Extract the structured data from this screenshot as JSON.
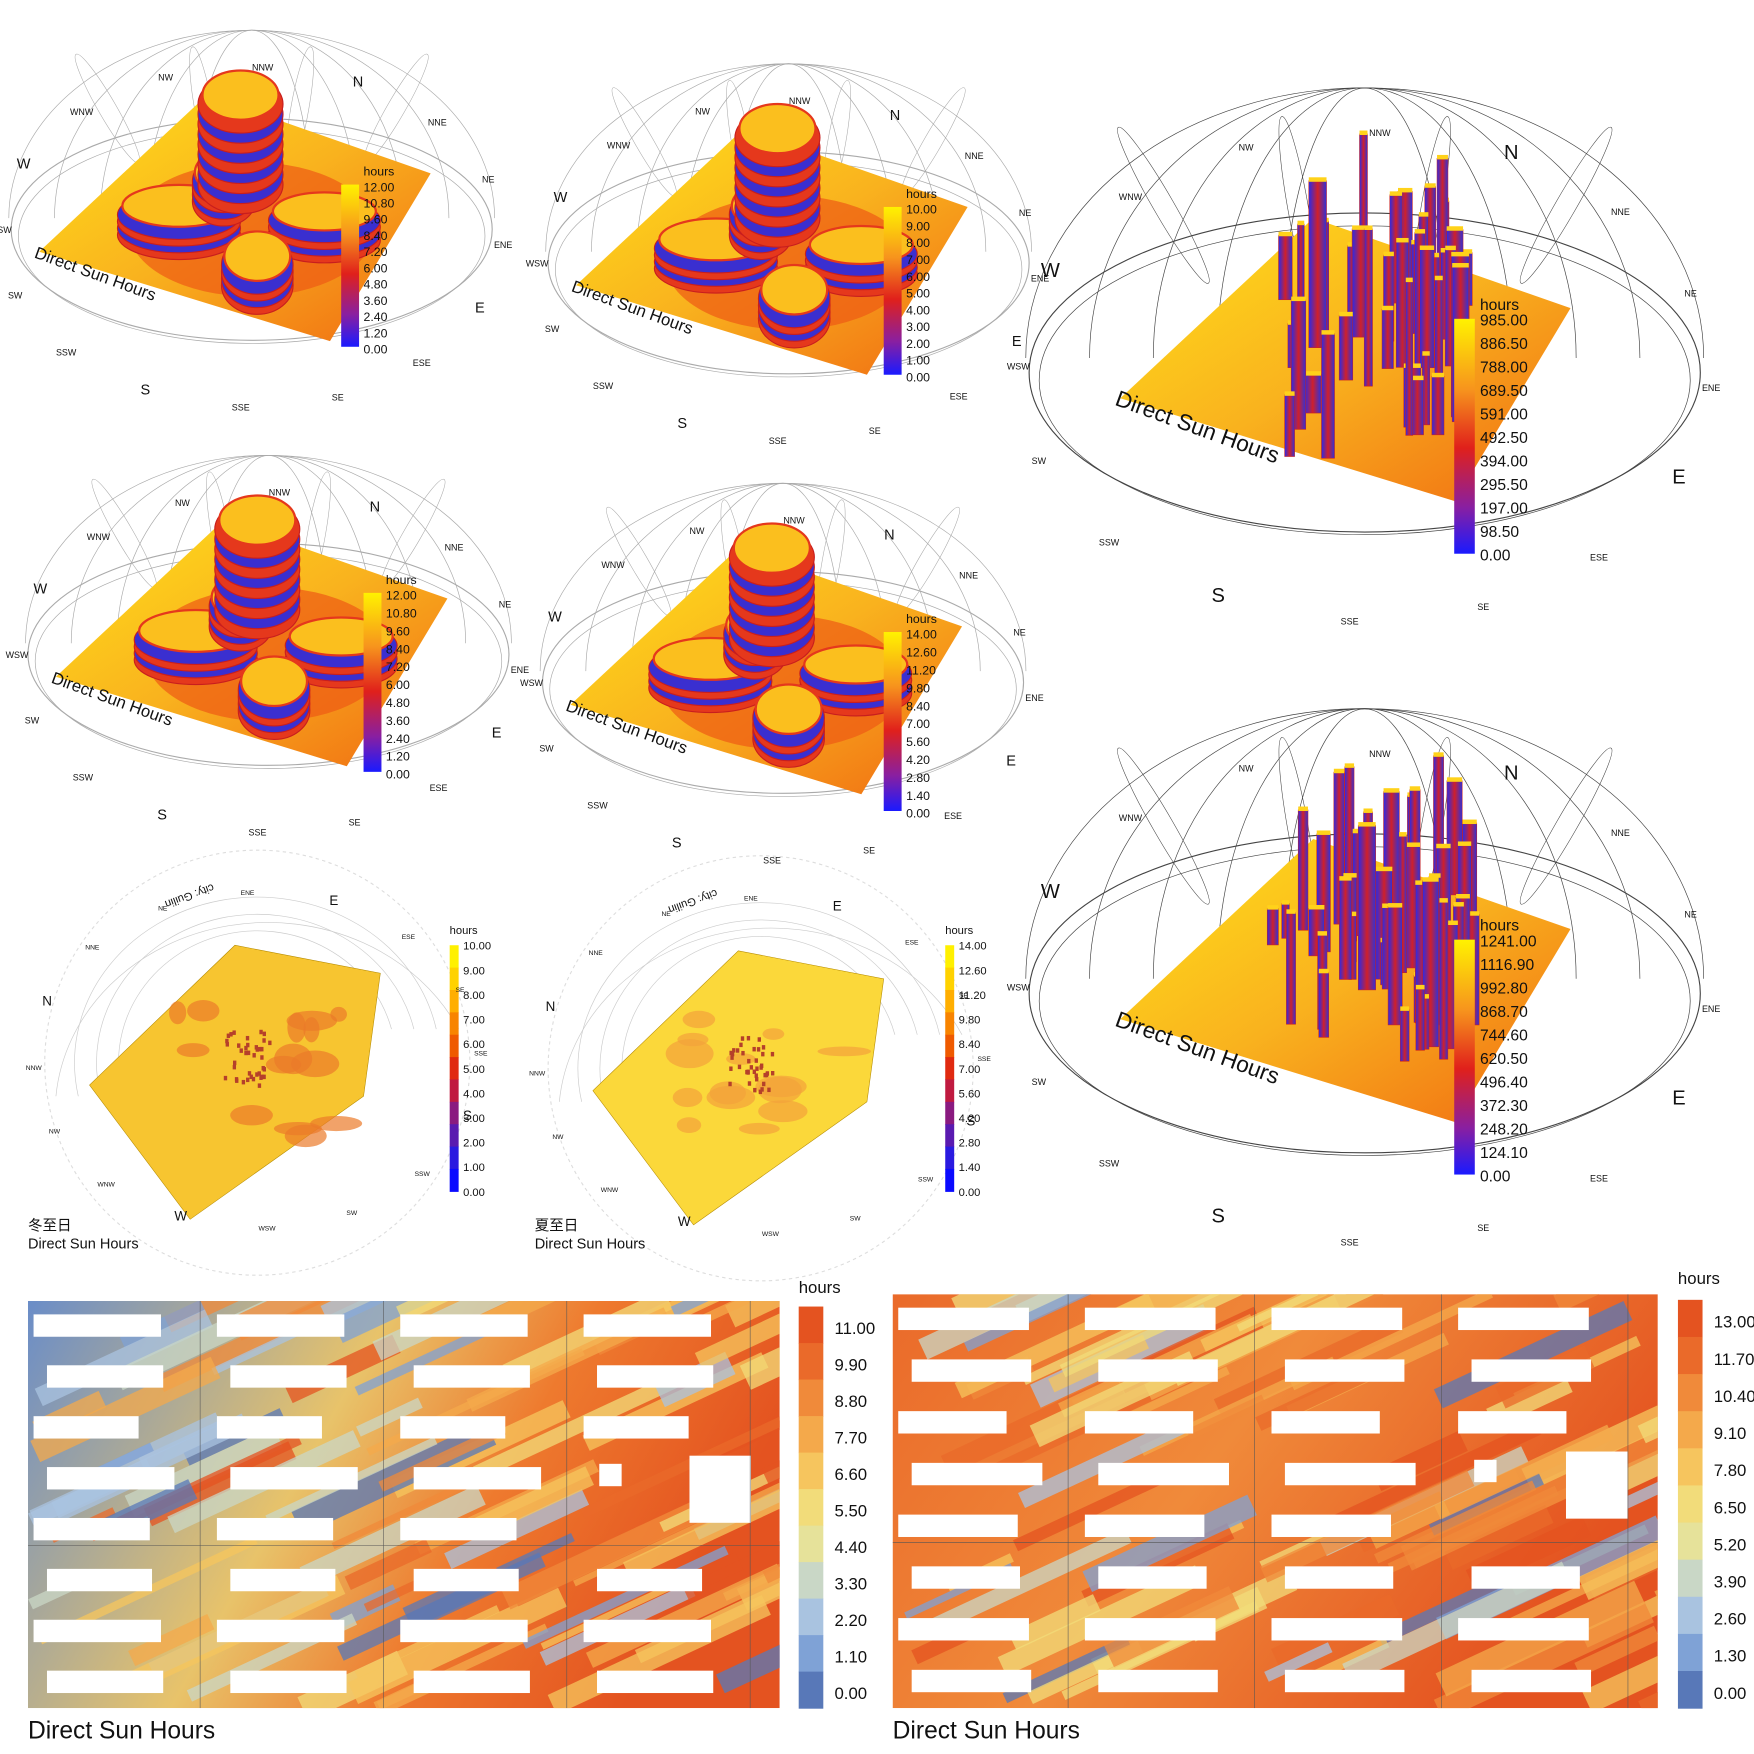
{
  "panels": [
    {
      "title": "Direct Sun Hours",
      "legend_title": "hours",
      "legend": [
        "12.00",
        "10.80",
        "9.60",
        "8.40",
        "7.20",
        "6.00",
        "4.80",
        "3.60",
        "2.40",
        "1.20",
        "0.00"
      ],
      "compass": [
        "N",
        "NNE",
        "NE",
        "ENE",
        "E",
        "ESE",
        "SE",
        "SSE",
        "S",
        "SSW",
        "SW",
        "WSW",
        "W",
        "WNW",
        "NW",
        "NNW"
      ]
    },
    {
      "title": "Direct Sun Hours",
      "legend_title": "hours",
      "legend": [
        "10.00",
        "9.00",
        "8.00",
        "7.00",
        "6.00",
        "5.00",
        "4.00",
        "3.00",
        "2.00",
        "1.00",
        "0.00"
      ],
      "compass": [
        "N",
        "NNE",
        "NE",
        "ENE",
        "E",
        "ESE",
        "SE",
        "SSE",
        "S",
        "SSW",
        "SW",
        "WSW",
        "W",
        "WNW",
        "NW",
        "NNW"
      ]
    },
    {
      "title": "Direct Sun Hours",
      "legend_title": "hours",
      "legend": [
        "985.00",
        "886.50",
        "788.00",
        "689.50",
        "591.00",
        "492.50",
        "394.00",
        "295.50",
        "197.00",
        "98.50",
        "0.00"
      ],
      "compass": [
        "N",
        "NNE",
        "NE",
        "ENE",
        "E",
        "ESE",
        "SE",
        "SSE",
        "S",
        "SSW",
        "SW",
        "WSW",
        "W",
        "WNW",
        "NW",
        "NNW"
      ]
    },
    {
      "title": "Direct Sun Hours",
      "legend_title": "hours",
      "legend": [
        "12.00",
        "10.80",
        "9.60",
        "8.40",
        "7.20",
        "6.00",
        "4.80",
        "3.60",
        "2.40",
        "1.20",
        "0.00"
      ],
      "compass": [
        "N",
        "NNE",
        "NE",
        "ENE",
        "E",
        "ESE",
        "SE",
        "SSE",
        "S",
        "SSW",
        "SW",
        "WSW",
        "W",
        "WNW",
        "NW",
        "NNW"
      ]
    },
    {
      "title": "Direct Sun Hours",
      "legend_title": "hours",
      "legend": [
        "14.00",
        "12.60",
        "11.20",
        "9.80",
        "8.40",
        "7.00",
        "5.60",
        "4.20",
        "2.80",
        "1.40",
        "0.00"
      ],
      "compass": [
        "N",
        "NNE",
        "NE",
        "ENE",
        "E",
        "ESE",
        "SE",
        "SSE",
        "S",
        "SSW",
        "SW",
        "WSW",
        "W",
        "WNW",
        "NW",
        "NNW"
      ]
    },
    {
      "title": "Direct Sun Hours",
      "legend_title": "hours",
      "legend": [
        "1241.00",
        "1116.90",
        "992.80",
        "868.70",
        "744.60",
        "620.50",
        "496.40",
        "372.30",
        "248.20",
        "124.10",
        "0.00"
      ],
      "compass": [
        "N",
        "NNE",
        "NE",
        "ENE",
        "E",
        "ESE",
        "SE",
        "SSE",
        "S",
        "SSW",
        "SW",
        "WSW",
        "W",
        "WNW",
        "NW",
        "NNW"
      ]
    }
  ],
  "site_panels": [
    {
      "caption": "冬至日",
      "title": "Direct Sun Hours",
      "city": "city: Guilin",
      "legend_title": "hours",
      "legend": [
        "10.00",
        "9.00",
        "8.00",
        "7.00",
        "6.00",
        "5.00",
        "4.00",
        "3.00",
        "2.00",
        "1.00",
        "0.00"
      ],
      "compass": [
        "N",
        "NNE",
        "NE",
        "ENE",
        "E",
        "ESE",
        "SE",
        "SSE",
        "S",
        "SSW",
        "SW",
        "WSW",
        "W",
        "WNW",
        "NW",
        "NNW"
      ]
    },
    {
      "caption": "夏至日",
      "title": "Direct Sun Hours",
      "city": "city: Guilin",
      "legend_title": "hours",
      "legend": [
        "14.00",
        "12.60",
        "11.20",
        "9.80",
        "8.40",
        "7.00",
        "5.60",
        "4.20",
        "2.80",
        "1.40",
        "0.00"
      ],
      "compass": [
        "N",
        "NNE",
        "NE",
        "ENE",
        "E",
        "ESE",
        "SE",
        "SSE",
        "S",
        "SSW",
        "SW",
        "WSW",
        "W",
        "WNW",
        "NW",
        "NNW"
      ]
    }
  ],
  "maps": [
    {
      "title": "Direct Sun Hours",
      "legend_title": "hours",
      "legend": [
        "11.00",
        "9.90",
        "8.80",
        "7.70",
        "6.60",
        "5.50",
        "4.40",
        "3.30",
        "2.20",
        "1.10",
        "0.00"
      ]
    },
    {
      "title": "Direct Sun Hours",
      "legend_title": "hours",
      "legend": [
        "13.00",
        "11.70",
        "10.40",
        "9.10",
        "7.80",
        "6.50",
        "5.20",
        "3.90",
        "2.60",
        "1.30",
        "0.00"
      ]
    }
  ]
}
